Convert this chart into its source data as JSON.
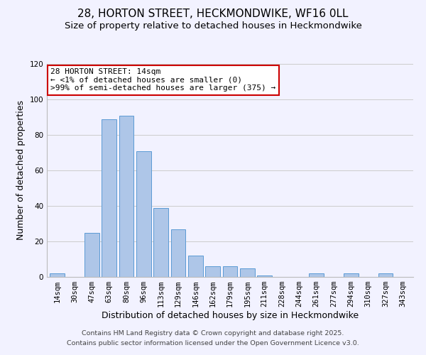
{
  "title": "28, HORTON STREET, HECKMONDWIKE, WF16 0LL",
  "subtitle": "Size of property relative to detached houses in Heckmondwike",
  "xlabel": "Distribution of detached houses by size in Heckmondwike",
  "ylabel": "Number of detached properties",
  "bar_labels": [
    "14sqm",
    "30sqm",
    "47sqm",
    "63sqm",
    "80sqm",
    "96sqm",
    "113sqm",
    "129sqm",
    "146sqm",
    "162sqm",
    "179sqm",
    "195sqm",
    "211sqm",
    "228sqm",
    "244sqm",
    "261sqm",
    "277sqm",
    "294sqm",
    "310sqm",
    "327sqm",
    "343sqm"
  ],
  "bar_values": [
    2,
    0,
    25,
    89,
    91,
    71,
    39,
    27,
    12,
    6,
    6,
    5,
    1,
    0,
    0,
    2,
    0,
    2,
    0,
    2,
    0
  ],
  "bar_color": "#aec6e8",
  "bar_edge_color": "#5b9bd5",
  "annotation_title": "28 HORTON STREET: 14sqm",
  "annotation_line1": "← <1% of detached houses are smaller (0)",
  "annotation_line2": ">99% of semi-detached houses are larger (375) →",
  "annotation_box_color": "#ffffff",
  "annotation_box_edge": "#cc0000",
  "highlight_bar_index": 0,
  "ylim": [
    0,
    120
  ],
  "yticks": [
    0,
    20,
    40,
    60,
    80,
    100,
    120
  ],
  "grid_color": "#cccccc",
  "bg_color": "#f2f2ff",
  "footer1": "Contains HM Land Registry data © Crown copyright and database right 2025.",
  "footer2": "Contains public sector information licensed under the Open Government Licence v3.0.",
  "title_fontsize": 11,
  "subtitle_fontsize": 9.5,
  "axis_label_fontsize": 9,
  "tick_fontsize": 7.5,
  "annotation_fontsize": 8,
  "footer_fontsize": 6.8
}
